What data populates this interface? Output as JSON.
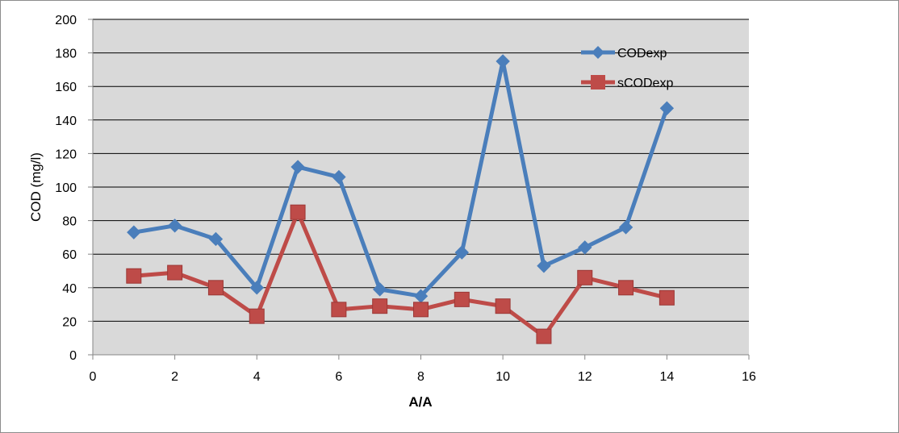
{
  "chart_data": {
    "type": "line",
    "title": "",
    "xlabel": "A/A",
    "ylabel": "COD (mg/l)",
    "xlim": [
      0,
      16
    ],
    "ylim": [
      0,
      200
    ],
    "xticks": [
      0,
      2,
      4,
      6,
      8,
      10,
      12,
      14,
      16
    ],
    "yticks": [
      0,
      20,
      40,
      60,
      80,
      100,
      120,
      140,
      160,
      180,
      200
    ],
    "grid": "horizontal",
    "legend_position": "top-right",
    "series": [
      {
        "name": "CODexp",
        "color": "#4a7ebb",
        "marker": "diamond",
        "x": [
          1,
          2,
          3,
          4,
          5,
          6,
          7,
          8,
          9,
          10,
          11,
          12,
          13,
          14
        ],
        "y": [
          73,
          77,
          69,
          40,
          112,
          106,
          39,
          35,
          61,
          175,
          53,
          64,
          76,
          147
        ]
      },
      {
        "name": "sCODexp",
        "color": "#be4b48",
        "marker": "square",
        "x": [
          1,
          2,
          3,
          4,
          5,
          6,
          7,
          8,
          9,
          10,
          11,
          12,
          13,
          14
        ],
        "y": [
          47,
          49,
          40,
          23,
          85,
          27,
          29,
          27,
          33,
          29,
          11,
          46,
          40,
          34
        ]
      }
    ]
  }
}
